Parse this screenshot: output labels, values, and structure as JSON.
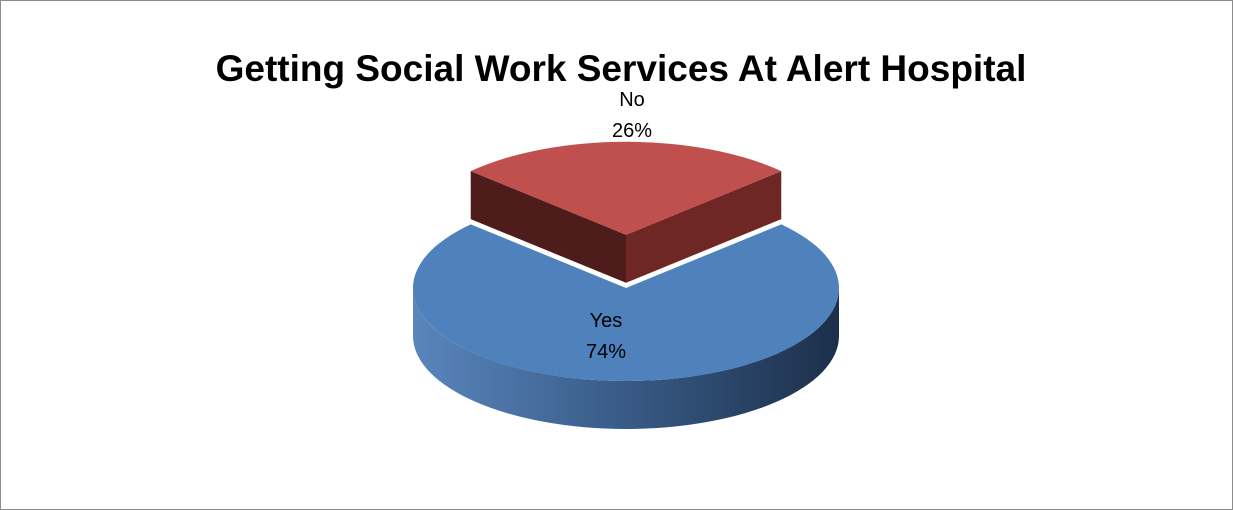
{
  "chart_data": {
    "type": "pie",
    "title": "Getting Social Work Services At Alert Hospital",
    "style": "3d",
    "slices": [
      {
        "label": "Yes",
        "value": 74,
        "value_label": "74%",
        "color": "#4f81bd",
        "side_color": "#2e4d73"
      },
      {
        "label": "No",
        "value": 26,
        "value_label": "26%",
        "color": "#c0504d",
        "side_color": "#6e2523"
      }
    ],
    "legend": "none"
  }
}
